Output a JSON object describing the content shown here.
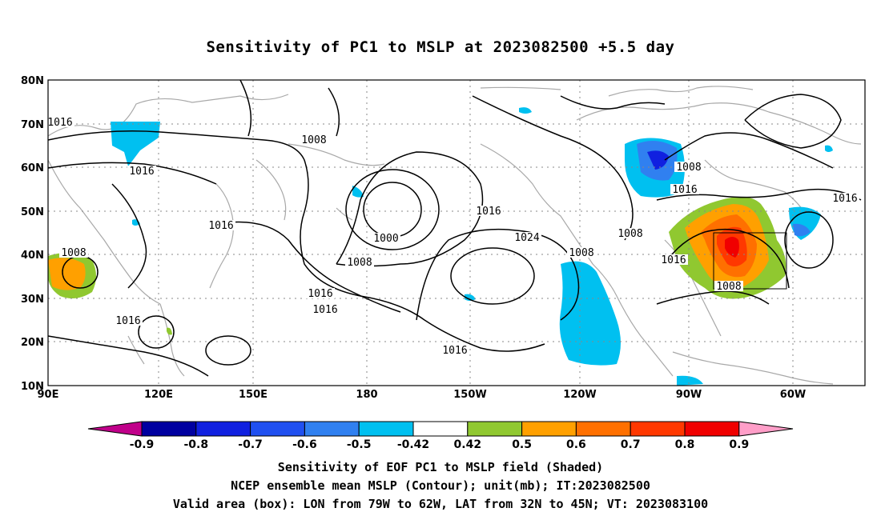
{
  "title": "Sensitivity of PC1 to MSLP at 2023082500 +5.5 day",
  "lat_labels": [
    "80N",
    "70N",
    "60N",
    "50N",
    "40N",
    "30N",
    "20N",
    "10N"
  ],
  "lon_labels": [
    "90E",
    "120E",
    "150E",
    "180",
    "150W",
    "120W",
    "90W",
    "60W"
  ],
  "contour_labels": [
    "1016",
    "1008",
    "1016",
    "1016",
    "1000",
    "1008",
    "1016",
    "1016",
    "1016",
    "1024",
    "1016",
    "1008",
    "1008",
    "1016",
    "1008",
    "1016",
    "1008",
    "1016",
    "1008"
  ],
  "colorbar": {
    "labels": [
      "-0.9",
      "-0.8",
      "-0.7",
      "-0.6",
      "-0.5",
      "-0.42",
      "0.42",
      "0.5",
      "0.6",
      "0.7",
      "0.8",
      "0.9"
    ],
    "colors": [
      "#c0008a",
      "#0000a0",
      "#1020e0",
      "#2050f0",
      "#3080f0",
      "#00c0f0",
      "#ffffff",
      "#90c830",
      "#ffa000",
      "#ff7000",
      "#ff3800",
      "#f00000",
      "#ff9ec8"
    ]
  },
  "captions": [
    "Sensitivity of EOF PC1 to MSLP field (Shaded)",
    "NCEP ensemble mean MSLP (Contour); unit(mb); IT:2023082500",
    "Valid area (box): LON from 79W to 62W, LAT from 32N to 45N; VT: 2023083100"
  ]
}
